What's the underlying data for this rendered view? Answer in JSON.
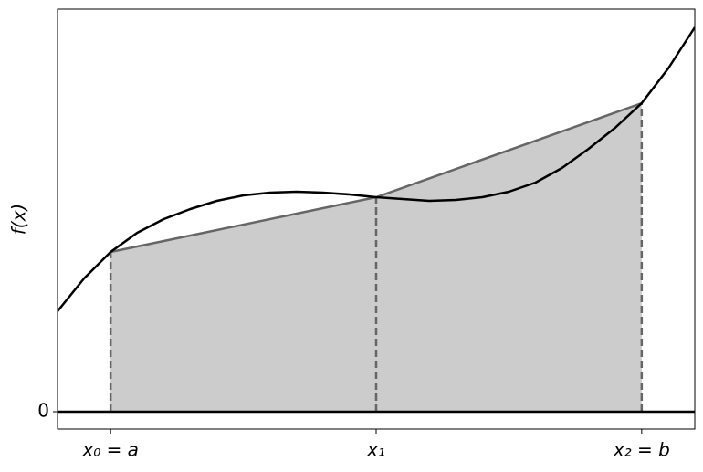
{
  "chart_data": {
    "type": "line",
    "ylabel": "f(x)",
    "x": [
      -0.2,
      -0.1,
      0,
      0.1,
      0.2,
      0.3,
      0.4,
      0.5,
      0.6,
      0.7,
      0.8,
      0.9,
      1.0,
      1.1,
      1.2,
      1.3,
      1.4,
      1.5,
      1.6,
      1.7,
      1.8,
      1.9,
      2.0,
      2.1,
      2.2
    ],
    "series": [
      {
        "color": "#000000",
        "values": [
          1.1,
          1.46,
          1.75,
          1.96,
          2.11,
          2.22,
          2.31,
          2.37,
          2.4,
          2.41,
          2.4,
          2.38,
          2.35,
          2.33,
          2.31,
          2.32,
          2.35,
          2.41,
          2.51,
          2.67,
          2.88,
          3.11,
          3.38,
          3.76,
          4.21
        ]
      }
    ],
    "trapezoid": {
      "x": [
        0,
        1,
        2
      ],
      "values": [
        1.75,
        2.35,
        3.38
      ],
      "fill": "#cccccc",
      "edge": "#666666"
    },
    "xlim": [
      -0.2,
      2.2
    ],
    "ylim": [
      -0.19,
      4.41
    ],
    "xticks": [
      {
        "value": 0,
        "label": "x₀ = a"
      },
      {
        "value": 1,
        "label": "x₁"
      },
      {
        "value": 2,
        "label": "x₂ = b"
      }
    ],
    "yticks": [
      0
    ]
  }
}
